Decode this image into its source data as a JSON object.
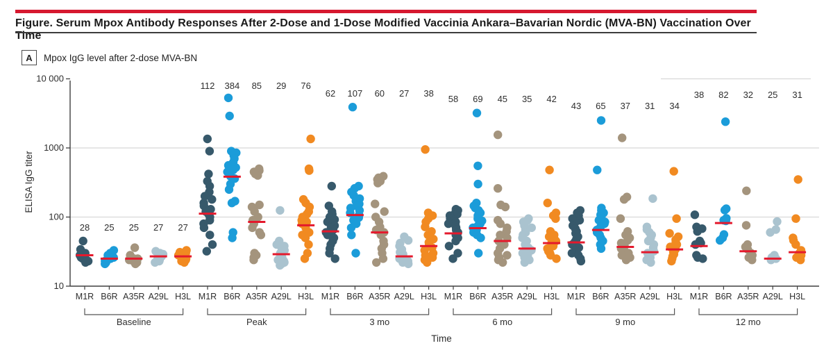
{
  "header": {
    "accent_color": "#d6182f",
    "title": "Figure. Serum Mpox Antibody Responses After 2-Dose and 1-Dose Modified Vaccinia Ankara–Bavarian Nordic (MVA-BN) Vaccination Over Time"
  },
  "panel": {
    "tag": "A",
    "title": "Mpox IgG level after 2-dose MVA-BN"
  },
  "chart_data": {
    "type": "scatter",
    "title": "Mpox IgG level after 2-dose MVA-BN",
    "xlabel": "Time",
    "ylabel": "ELISA IgG titer",
    "yscale": "log",
    "ylim": [
      10,
      10000
    ],
    "ytick_values": [
      10,
      100,
      1000,
      10000
    ],
    "ytick_labels": [
      "10",
      "100",
      "1000",
      "10 000"
    ],
    "grid": "horizontal-light",
    "legend_position": "none",
    "antigens": [
      "M1R",
      "B6R",
      "A35R",
      "A29L",
      "H3L"
    ],
    "colors": {
      "M1R": "#37596b",
      "B6R": "#1b9cd9",
      "A35R": "#a4947d",
      "A29L": "#aac3cf",
      "H3L": "#f18a21",
      "median_line": "#e4192c",
      "axis": "#3f3f3f",
      "gridline": "#d8d8d8",
      "text": "#2e2e2e"
    },
    "groups": [
      {
        "name": "Baseline",
        "columns": [
          {
            "antigen": "M1R",
            "gm_titer": 28,
            "values": [
              45,
              34,
              30,
              29,
              28,
              28,
              27,
              26,
              25,
              24,
              23,
              22
            ]
          },
          {
            "antigen": "B6R",
            "gm_titer": 25,
            "values": [
              33,
              30,
              28,
              27,
              26,
              25,
              25,
              24,
              23,
              22,
              21
            ]
          },
          {
            "antigen": "A35R",
            "gm_titer": 25,
            "values": [
              36,
              28,
              27,
              26,
              25,
              25,
              24,
              23,
              22,
              21
            ]
          },
          {
            "antigen": "A29L",
            "gm_titer": 27,
            "values": [
              32,
              30,
              29,
              28,
              27,
              26,
              25,
              24,
              23,
              22
            ]
          },
          {
            "antigen": "H3L",
            "gm_titer": 27,
            "values": [
              33,
              31,
              30,
              28,
              27,
              26,
              25,
              24,
              23,
              22
            ]
          }
        ]
      },
      {
        "name": "Peak",
        "columns": [
          {
            "antigen": "M1R",
            "gm_titer": 112,
            "values": [
              1350,
              900,
              420,
              330,
              280,
              230,
              200,
              180,
              160,
              145,
              130,
              120,
              110,
              100,
              90,
              80,
              70,
              55,
              40,
              32
            ]
          },
          {
            "antigen": "B6R",
            "gm_titer": 384,
            "values": [
              5300,
              2900,
              900,
              850,
              780,
              700,
              620,
              560,
              520,
              480,
              450,
              420,
              390,
              360,
              300,
              250,
              170,
              160,
              60,
              50
            ]
          },
          {
            "antigen": "A35R",
            "gm_titer": 85,
            "values": [
              500,
              470,
              450,
              420,
              400,
              150,
              140,
              120,
              100,
              90,
              85,
              80,
              70,
              60,
              55,
              30,
              28,
              26,
              24
            ]
          },
          {
            "antigen": "A29L",
            "gm_titer": 29,
            "values": [
              125,
              45,
              40,
              38,
              35,
              33,
              30,
              28,
              27,
              26,
              25,
              24,
              23,
              22,
              21,
              20
            ]
          },
          {
            "antigen": "H3L",
            "gm_titer": 76,
            "values": [
              1350,
              500,
              470,
              180,
              160,
              140,
              120,
              110,
              100,
              90,
              85,
              80,
              70,
              60,
              55,
              50,
              40,
              30,
              25
            ]
          }
        ]
      },
      {
        "name": "3 mo",
        "columns": [
          {
            "antigen": "M1R",
            "gm_titer": 62,
            "values": [
              280,
              145,
              120,
              110,
              100,
              92,
              85,
              80,
              75,
              70,
              65,
              60,
              55,
              50,
              45,
              40,
              35,
              30,
              25
            ]
          },
          {
            "antigen": "B6R",
            "gm_titer": 107,
            "values": [
              3900,
              280,
              260,
              230,
              205,
              185,
              170,
              155,
              145,
              135,
              125,
              115,
              107,
              98,
              90,
              80,
              70,
              55,
              30
            ]
          },
          {
            "antigen": "A35R",
            "gm_titer": 60,
            "values": [
              390,
              370,
              350,
              330,
              310,
              155,
              120,
              100,
              85,
              72,
              65,
              60,
              55,
              45,
              40,
              35,
              30,
              25,
              22
            ]
          },
          {
            "antigen": "A29L",
            "gm_titer": 27,
            "values": [
              52,
              46,
              42,
              38,
              34,
              31,
              29,
              27,
              26,
              25,
              24,
              23,
              22,
              21
            ]
          },
          {
            "antigen": "H3L",
            "gm_titer": 38,
            "values": [
              950,
              115,
              105,
              95,
              85,
              72,
              62,
              55,
              48,
              43,
              40,
              36,
              33,
              30,
              28,
              26,
              24,
              22
            ]
          }
        ]
      },
      {
        "name": "6 mo",
        "columns": [
          {
            "antigen": "M1R",
            "gm_titer": 58,
            "values": [
              130,
              125,
              115,
              110,
              105,
              100,
              95,
              90,
              85,
              80,
              75,
              70,
              65,
              60,
              55,
              50,
              45,
              38,
              30,
              25
            ]
          },
          {
            "antigen": "B6R",
            "gm_titer": 69,
            "values": [
              3200,
              550,
              300,
              160,
              145,
              135,
              125,
              115,
              105,
              95,
              88,
              80,
              75,
              70,
              65,
              60,
              55,
              50,
              30
            ]
          },
          {
            "antigen": "A35R",
            "gm_titer": 45,
            "values": [
              1550,
              260,
              150,
              140,
              90,
              80,
              70,
              62,
              55,
              50,
              45,
              40,
              35,
              30,
              28,
              26,
              24,
              22
            ]
          },
          {
            "antigen": "A29L",
            "gm_titer": 35,
            "values": [
              95,
              90,
              85,
              75,
              70,
              65,
              60,
              55,
              50,
              45,
              40,
              36,
              33,
              30,
              28,
              26,
              24,
              22
            ]
          },
          {
            "antigen": "H3L",
            "gm_titer": 42,
            "values": [
              480,
              160,
              115,
              105,
              95,
              62,
              55,
              52,
              48,
              45,
              42,
              40,
              38,
              35,
              32,
              30,
              28,
              25
            ]
          }
        ]
      },
      {
        "name": "9 mo",
        "columns": [
          {
            "antigen": "M1R",
            "gm_titer": 43,
            "values": [
              125,
              115,
              105,
              95,
              90,
              85,
              75,
              68,
              62,
              58,
              52,
              48,
              44,
              40,
              36,
              33,
              30,
              28,
              25,
              23
            ]
          },
          {
            "antigen": "B6R",
            "gm_titer": 65,
            "values": [
              2500,
              480,
              135,
              125,
              115,
              108,
              100,
              95,
              90,
              85,
              80,
              72,
              65,
              60,
              55,
              50,
              45,
              40,
              35
            ]
          },
          {
            "antigen": "A35R",
            "gm_titer": 37,
            "values": [
              1400,
              195,
              180,
              95,
              62,
              55,
              50,
              46,
              42,
              38,
              35,
              32,
              30,
              28,
              26,
              24
            ]
          },
          {
            "antigen": "A29L",
            "gm_titer": 31,
            "values": [
              185,
              72,
              66,
              60,
              55,
              50,
              45,
              40,
              36,
              32,
              30,
              28,
              26,
              24,
              22
            ]
          },
          {
            "antigen": "H3L",
            "gm_titer": 34,
            "values": [
              460,
              95,
              58,
              52,
              47,
              43,
              40,
              37,
              34,
              31,
              29,
              27,
              25,
              23
            ]
          }
        ]
      },
      {
        "name": "12 mo",
        "columns": [
          {
            "antigen": "M1R",
            "gm_titer": 38,
            "values": [
              108,
              72,
              68,
              62,
              45,
              42,
              40,
              28,
              26,
              25
            ]
          },
          {
            "antigen": "B6R",
            "gm_titer": 82,
            "values": [
              2400,
              132,
              126,
              96,
              90,
              88,
              56,
              50,
              46
            ]
          },
          {
            "antigen": "A35R",
            "gm_titer": 32,
            "values": [
              240,
              76,
              40,
              37,
              34,
              30,
              28,
              26,
              24
            ]
          },
          {
            "antigen": "A29L",
            "gm_titer": 25,
            "values": [
              86,
              66,
              60,
              28,
              26,
              25,
              24
            ]
          },
          {
            "antigen": "H3L",
            "gm_titer": 31,
            "values": [
              350,
              95,
              50,
              46,
              40,
              33,
              30,
              28,
              26,
              24
            ]
          }
        ]
      }
    ]
  }
}
